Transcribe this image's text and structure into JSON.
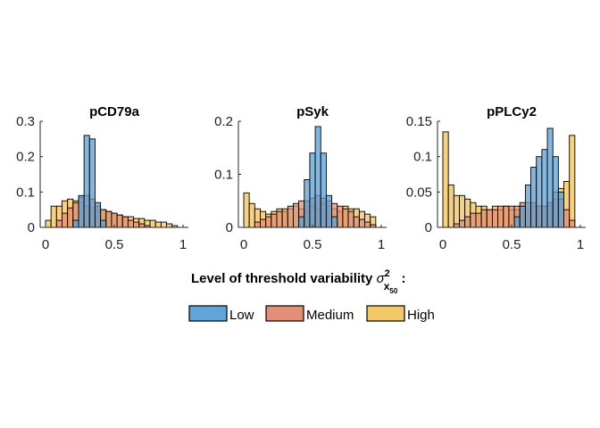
{
  "colors": {
    "Low": "#5a9fd6",
    "Medium": "#df8a6e",
    "High": "#f2c660",
    "edge": "#000000"
  },
  "legend": {
    "title_prefix": "Level of threshold variability ",
    "sigma": "σ",
    "superscript": "2",
    "sub_x": "x",
    "sub_50": "50",
    "suffix": " :",
    "items": [
      "Low",
      "Medium",
      "High"
    ]
  },
  "chart_data": [
    {
      "type": "bar",
      "title": "pCD79a",
      "xlim": [
        -0.05,
        1.05
      ],
      "ylim": [
        0,
        0.3
      ],
      "xticks": [
        0,
        0.5,
        1
      ],
      "xtick_labels": [
        "0",
        "0.5",
        "1"
      ],
      "yticks": [
        0,
        0.1,
        0.2,
        0.3
      ],
      "ytick_labels": [
        "0",
        "0.1",
        "0.2",
        "0.3"
      ],
      "bin_edges_start": 0,
      "bin_width": 0.04,
      "bins": 24,
      "series": [
        {
          "name": "High",
          "values": [
            0.02,
            0.06,
            0.06,
            0.075,
            0.08,
            0.075,
            0.07,
            0.06,
            0.055,
            0.045,
            0.05,
            0.045,
            0.04,
            0.035,
            0.03,
            0.03,
            0.025,
            0.025,
            0.02,
            0.02,
            0.015,
            0.015,
            0.01,
            0.005
          ]
        },
        {
          "name": "Medium",
          "values": [
            0.0,
            0.0,
            0.02,
            0.04,
            0.055,
            0.07,
            0.085,
            0.09,
            0.08,
            0.06,
            0.05,
            0.045,
            0.04,
            0.035,
            0.03,
            0.02,
            0.015,
            0.01,
            0.005,
            0.0,
            0.0,
            0.0,
            0.0,
            0.0
          ]
        },
        {
          "name": "Low",
          "values": [
            0.0,
            0.0,
            0.0,
            0.0,
            0.0,
            0.02,
            0.09,
            0.26,
            0.25,
            0.07,
            0.02,
            0.0,
            0.0,
            0.0,
            0.0,
            0.0,
            0.0,
            0.0,
            0.0,
            0.0,
            0.0,
            0.0,
            0.0,
            0.0
          ]
        }
      ]
    },
    {
      "type": "bar",
      "title": "pSyk",
      "xlim": [
        -0.05,
        1.05
      ],
      "ylim": [
        0,
        0.2
      ],
      "xticks": [
        0,
        0.5,
        1
      ],
      "xtick_labels": [
        "0",
        "0.5",
        "1"
      ],
      "yticks": [
        0,
        0.1,
        0.2
      ],
      "ytick_labels": [
        "0",
        "0.1",
        "0.2"
      ],
      "bin_edges_start": 0,
      "bin_width": 0.04,
      "bins": 24,
      "series": [
        {
          "name": "High",
          "values": [
            0.065,
            0.045,
            0.035,
            0.03,
            0.025,
            0.03,
            0.035,
            0.03,
            0.035,
            0.04,
            0.035,
            0.03,
            0.04,
            0.035,
            0.045,
            0.04,
            0.035,
            0.03,
            0.04,
            0.035,
            0.035,
            0.03,
            0.025,
            0.02
          ]
        },
        {
          "name": "Medium",
          "values": [
            0.0,
            0.0,
            0.01,
            0.015,
            0.02,
            0.025,
            0.03,
            0.035,
            0.04,
            0.045,
            0.05,
            0.05,
            0.055,
            0.06,
            0.055,
            0.05,
            0.045,
            0.04,
            0.035,
            0.03,
            0.02,
            0.015,
            0.01,
            0.005
          ]
        },
        {
          "name": "Low",
          "values": [
            0.0,
            0.0,
            0.0,
            0.0,
            0.0,
            0.0,
            0.0,
            0.0,
            0.0,
            0.0,
            0.02,
            0.09,
            0.14,
            0.19,
            0.14,
            0.06,
            0.02,
            0.0,
            0.0,
            0.0,
            0.0,
            0.0,
            0.0,
            0.0
          ]
        }
      ]
    },
    {
      "type": "bar",
      "title": "pPLCy2",
      "xlim": [
        -0.05,
        1.05
      ],
      "ylim": [
        0,
        0.15
      ],
      "xticks": [
        0,
        0.5,
        1
      ],
      "xtick_labels": [
        "0",
        "0.5",
        "1"
      ],
      "yticks": [
        0,
        0.05,
        0.1,
        0.15
      ],
      "ytick_labels": [
        "0",
        "0.05",
        "0.1",
        "0.15"
      ],
      "bin_edges_start": 0,
      "bin_width": 0.04,
      "bins": 24,
      "series": [
        {
          "name": "High",
          "values": [
            0.135,
            0.06,
            0.045,
            0.045,
            0.04,
            0.035,
            0.03,
            0.03,
            0.025,
            0.03,
            0.025,
            0.03,
            0.025,
            0.025,
            0.03,
            0.025,
            0.03,
            0.03,
            0.025,
            0.03,
            0.04,
            0.055,
            0.065,
            0.13
          ]
        },
        {
          "name": "Medium",
          "values": [
            0.0,
            0.0,
            0.005,
            0.01,
            0.015,
            0.02,
            0.02,
            0.025,
            0.025,
            0.025,
            0.03,
            0.03,
            0.03,
            0.03,
            0.035,
            0.035,
            0.035,
            0.03,
            0.03,
            0.035,
            0.05,
            0.04,
            0.025,
            0.01
          ]
        },
        {
          "name": "Low",
          "values": [
            0.0,
            0.0,
            0.0,
            0.0,
            0.0,
            0.0,
            0.0,
            0.0,
            0.0,
            0.0,
            0.0,
            0.0,
            0.0,
            0.015,
            0.03,
            0.06,
            0.085,
            0.1,
            0.11,
            0.14,
            0.1,
            0.05,
            0.0,
            0.0
          ]
        }
      ]
    }
  ]
}
